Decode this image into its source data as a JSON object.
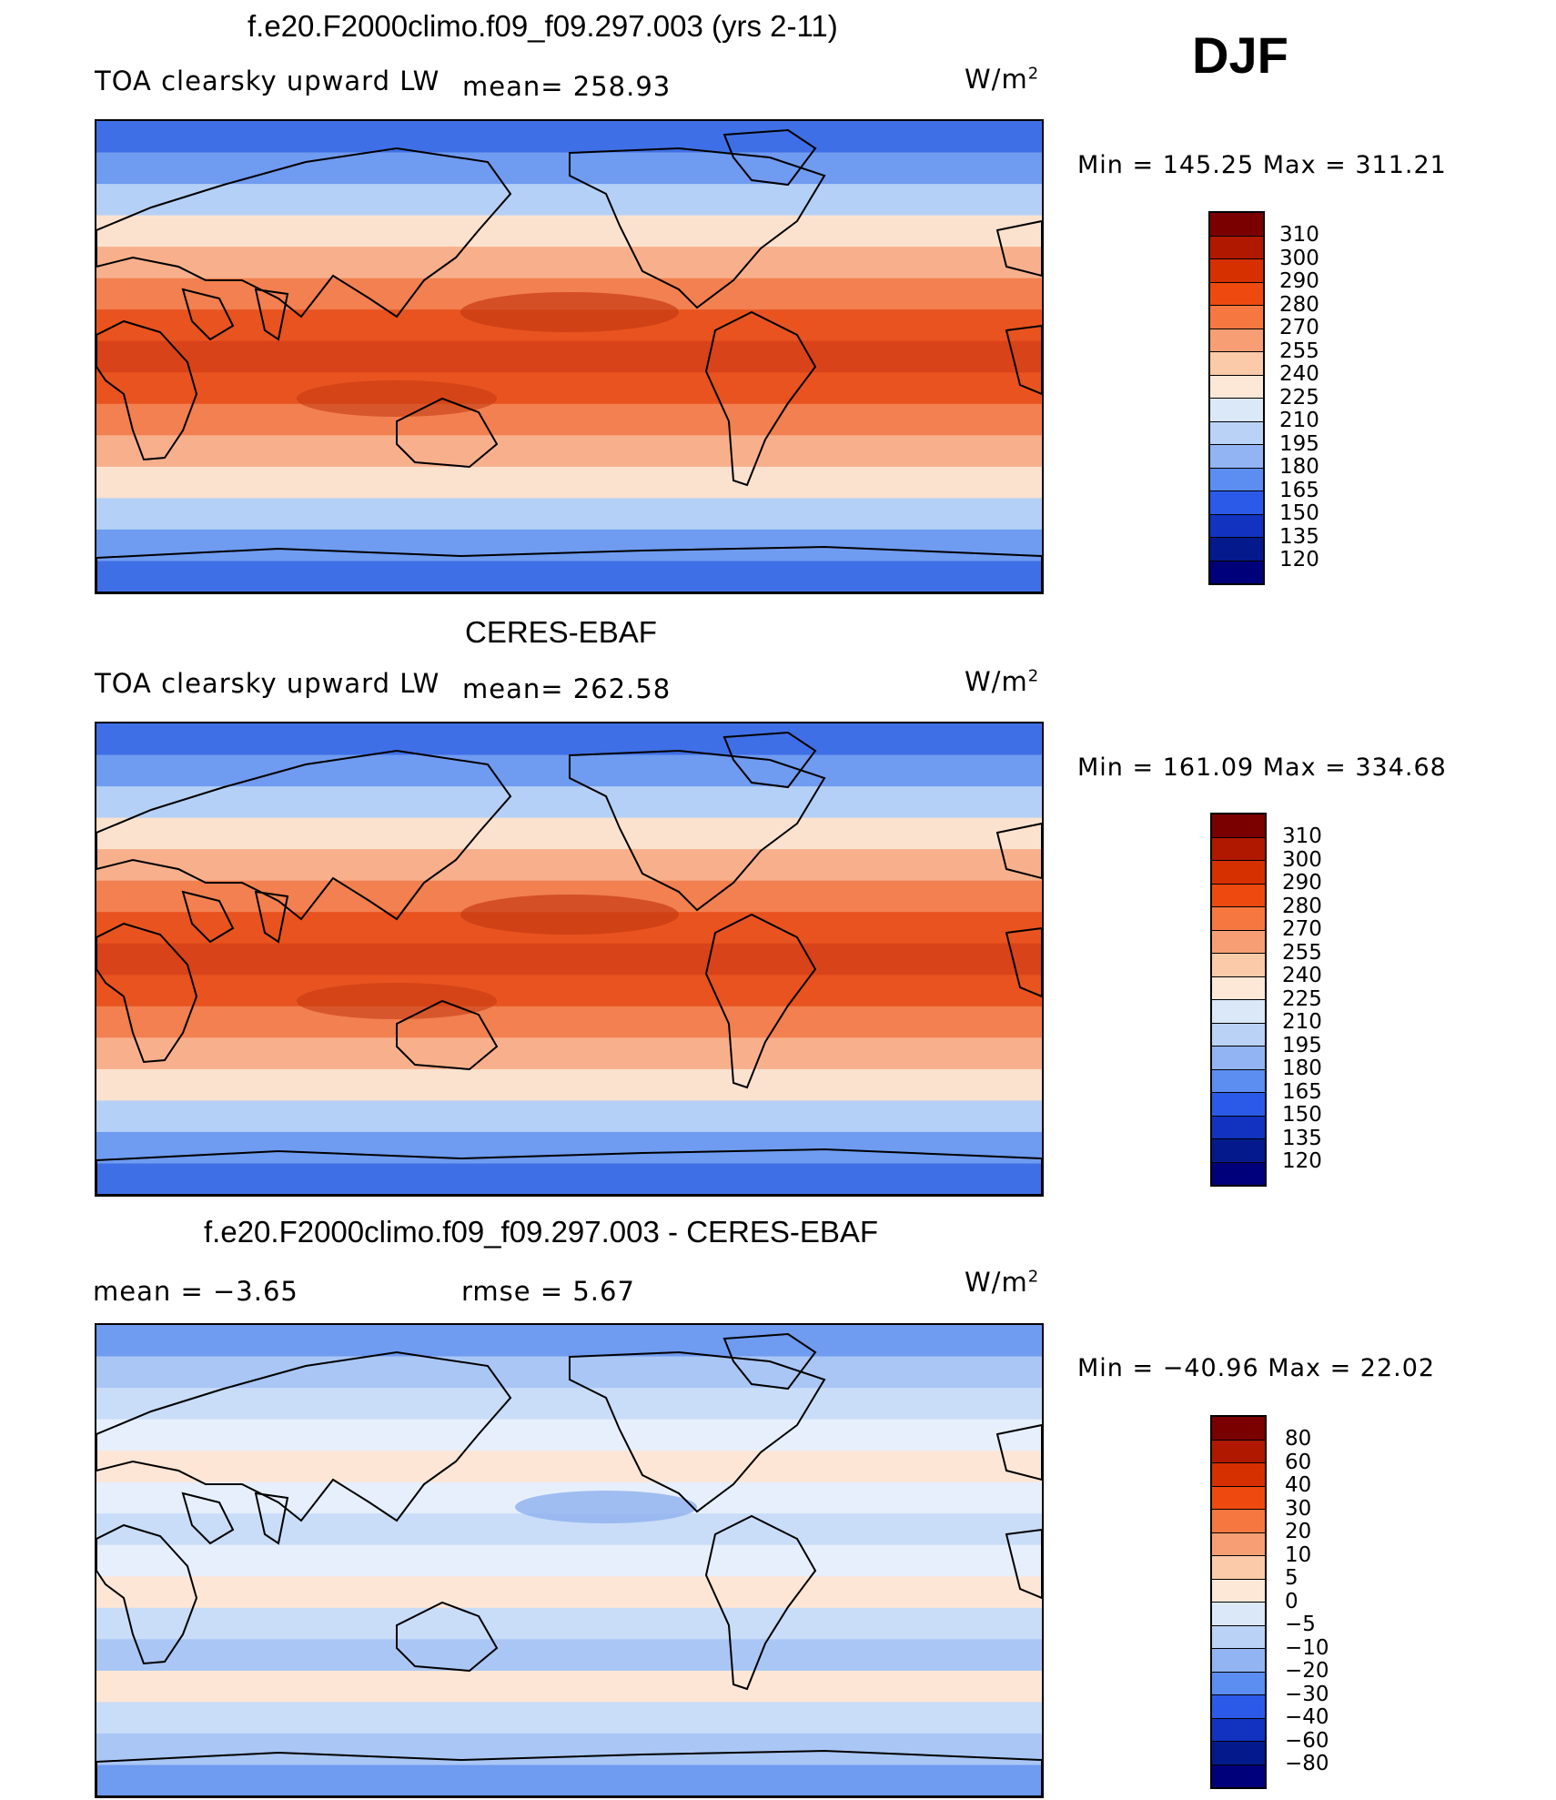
{
  "season": "DJF",
  "units": {
    "base": "W/m",
    "exp": "2"
  },
  "panels": [
    {
      "title": "f.e20.F2000climo.f09_f09.297.003 (yrs 2-11)",
      "variable": "TOA clearsky upward LW",
      "stat1": "mean= 258.93",
      "minmax": "Min  =  145.25  Max  =  311.21",
      "levels": [
        "310",
        "300",
        "290",
        "280",
        "270",
        "255",
        "240",
        "225",
        "210",
        "195",
        "180",
        "165",
        "150",
        "135",
        "120"
      ]
    },
    {
      "title": "CERES-EBAF",
      "variable": "TOA clearsky upward LW",
      "stat1": "mean= 262.58",
      "minmax": "Min  =  161.09  Max  =  334.68",
      "levels": [
        "310",
        "300",
        "290",
        "280",
        "270",
        "255",
        "240",
        "225",
        "210",
        "195",
        "180",
        "165",
        "150",
        "135",
        "120"
      ]
    },
    {
      "title": "f.e20.F2000climo.f09_f09.297.003 - CERES-EBAF",
      "variable": "mean  =    −3.65",
      "stat1": "rmse  =     5.67",
      "minmax": "Min  =  −40.96  Max  =    22.02",
      "levels": [
        "80",
        "60",
        "40",
        "30",
        "20",
        "10",
        "5",
        "0",
        "−5",
        "−10",
        "−20",
        "−30",
        "−40",
        "−60",
        "−80"
      ]
    }
  ],
  "palette": {
    "full": [
      "#7a0000",
      "#b01800",
      "#d63000",
      "#ee4a10",
      "#f67840",
      "#f79e75",
      "#fbcaa8",
      "#fde8d8",
      "#dbe8f7",
      "#b9d2f5",
      "#93b4f2",
      "#5c8df0",
      "#2c5ae8",
      "#1232c0",
      "#041a8c",
      "#00007a"
    ],
    "ocean_lat_bands": [
      "#3f6fe6",
      "#6f9bf0",
      "#b5d0f6",
      "#fbe2cf",
      "#f8b08c",
      "#f28050",
      "#e8531f",
      "#d9431a",
      "#e8531f",
      "#f28050",
      "#f8b08c",
      "#fbe2cf",
      "#b5d0f6",
      "#6f9bf0",
      "#3f6fe6"
    ],
    "diff_bands": [
      "#6f9bf0",
      "#a9c6f5",
      "#c9dcf8",
      "#e6effb",
      "#fde6d6",
      "#e6effb",
      "#c9dcf8",
      "#e6effb",
      "#fde6d6",
      "#c9dcf8",
      "#a9c6f5",
      "#fde6d6",
      "#c9dcf8",
      "#a9c6f5",
      "#6f9bf0"
    ]
  }
}
